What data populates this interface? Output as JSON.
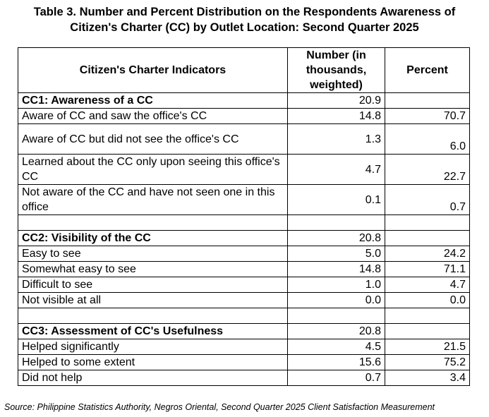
{
  "title": {
    "line1": "Table 3. Number and Percent Distribution on the Respondents Awareness of",
    "line2": "Citizen's Charter (CC) by Outlet Location:  Second Quarter 2025"
  },
  "table": {
    "headers": {
      "indicator": "Citizen's Charter Indicators",
      "number": "Number (in thousands, weighted)",
      "percent": "Percent"
    },
    "rows": [
      {
        "kind": "section",
        "label": "CC1: Awareness of a CC",
        "number": "20.9",
        "percent": ""
      },
      {
        "kind": "single",
        "label": "Aware of CC and saw the office's CC",
        "number": "14.8",
        "percent": "70.7"
      },
      {
        "kind": "double",
        "label": "Aware of CC but did not see the office's CC",
        "number": "1.3",
        "percent": "6.0"
      },
      {
        "kind": "double",
        "label": "Learned about the CC only upon seeing this office's CC",
        "number": "4.7",
        "percent": "22.7"
      },
      {
        "kind": "double",
        "label": "Not aware of the CC and have not seen one in this office",
        "number": "0.1",
        "percent": "0.7"
      },
      {
        "kind": "blank",
        "label": "",
        "number": "",
        "percent": ""
      },
      {
        "kind": "section",
        "label": "CC2: Visibility of the CC",
        "number": "20.8",
        "percent": ""
      },
      {
        "kind": "single",
        "label": "Easy to see",
        "number": "5.0",
        "percent": "24.2"
      },
      {
        "kind": "single",
        "label": "Somewhat easy to see",
        "number": "14.8",
        "percent": "71.1"
      },
      {
        "kind": "single",
        "label": "Difficult to see",
        "number": "1.0",
        "percent": "4.7"
      },
      {
        "kind": "single",
        "label": "Not visible at all",
        "number": "0.0",
        "percent": "0.0"
      },
      {
        "kind": "blank",
        "label": "",
        "number": "",
        "percent": ""
      },
      {
        "kind": "section",
        "label": "CC3: Assessment of CC's Usefulness",
        "number": "20.8",
        "percent": ""
      },
      {
        "kind": "single",
        "label": "Helped significantly",
        "number": "4.5",
        "percent": "21.5"
      },
      {
        "kind": "single",
        "label": "Helped to some extent",
        "number": "15.6",
        "percent": "75.2"
      },
      {
        "kind": "single",
        "label": "Did not help",
        "number": "0.7",
        "percent": "3.4"
      }
    ]
  },
  "source": "Source: Philippine Statistics Authority, Negros Oriental, Second Quarter 2025 Client Satisfaction Measurement"
}
